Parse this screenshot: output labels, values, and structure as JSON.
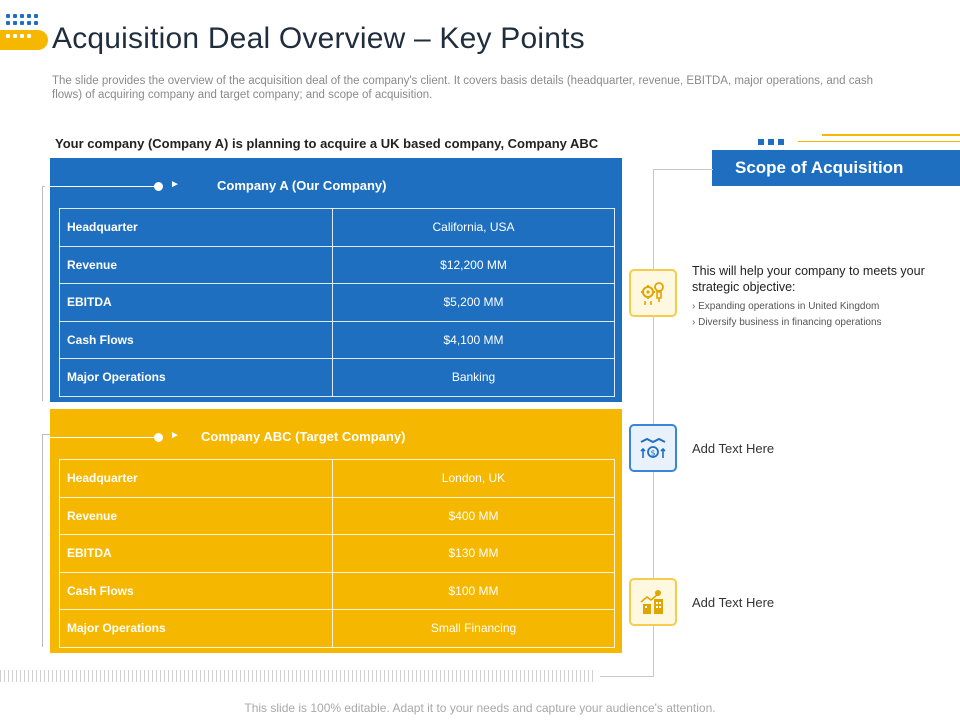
{
  "title": "Acquisition Deal Overview – Key Points",
  "subtitle": "The slide provides the overview of the acquisition deal of the company's client. It covers basis details (headquarter, revenue, EBITDA,  major operations, and cash flows) of acquiring company and target company; and scope of acquisition.",
  "intro": "Your company (Company A) is planning to acquire a UK based company, Company ABC",
  "company_a": {
    "heading": "Company A (Our Company)",
    "rows": [
      {
        "label": "Headquarter",
        "value": "California, USA"
      },
      {
        "label": "Revenue",
        "value": "$12,200 MM"
      },
      {
        "label": "EBITDA",
        "value": "$5,200 MM"
      },
      {
        "label": "Cash Flows",
        "value": "$4,100 MM"
      },
      {
        "label": "Major Operations",
        "value": "Banking"
      }
    ]
  },
  "company_abc": {
    "heading": "Company ABC (Target Company)",
    "rows": [
      {
        "label": "Headquarter",
        "value": "London, UK"
      },
      {
        "label": "Revenue",
        "value": "$400 MM"
      },
      {
        "label": "EBITDA",
        "value": "$130 MM"
      },
      {
        "label": "Cash Flows",
        "value": "$100 MM"
      },
      {
        "label": "Major Operations",
        "value": "Small Financing"
      }
    ]
  },
  "scope": {
    "heading": "Scope of Acquisition",
    "objective_heading": "This will help your company to meets your strategic objective:",
    "objectives": [
      "Expanding operations in United Kingdom",
      "Diversify business in financing operations"
    ],
    "item2": "Add Text Here",
    "item3": "Add Text Here",
    "icons": [
      "idea-gear-icon",
      "handshake-money-icon",
      "growth-buildings-icon"
    ]
  },
  "footer": "This slide is 100% editable. Adapt it to your needs and capture your audience's attention.",
  "colors": {
    "blue": "#1f6fc0",
    "yellow": "#f5b700"
  }
}
